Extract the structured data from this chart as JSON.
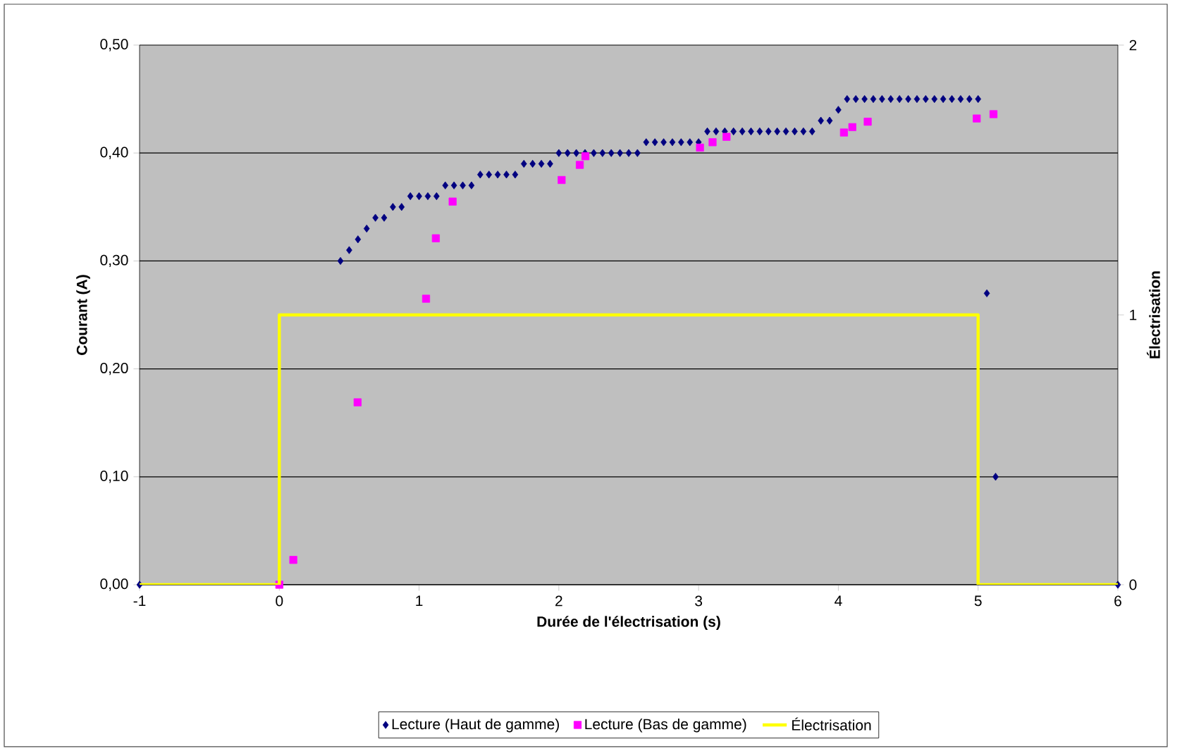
{
  "chart_data": {
    "type": "scatter",
    "xlabel": "Durée de l'électrisation  (s)",
    "ylabel": "Courant (A)",
    "y2label": "Électrisation",
    "xlim": [
      -1,
      6
    ],
    "xticks": [
      -1,
      0,
      1,
      2,
      3,
      4,
      5,
      6
    ],
    "ylim": [
      0,
      0.5
    ],
    "yticks": [
      {
        "value": 0,
        "label": "0,00"
      },
      {
        "value": 0.1,
        "label": "0,10"
      },
      {
        "value": 0.2,
        "label": "0,20"
      },
      {
        "value": 0.3,
        "label": "0,30"
      },
      {
        "value": 0.4,
        "label": "0,40"
      },
      {
        "value": 0.5,
        "label": "0,50"
      }
    ],
    "y2lim": [
      0,
      2
    ],
    "y2ticks": [
      0,
      1,
      2
    ],
    "grid": "y",
    "legend": "bottom",
    "series": [
      {
        "name": "Lecture (Haut de gamme)",
        "marker": "diamond",
        "color": "#000080",
        "x": [
          -1,
          0.4375,
          0.5,
          0.5625,
          0.625,
          0.6875,
          0.75,
          0.8125,
          0.875,
          0.9375,
          1,
          1.0625,
          1.125,
          1.1875,
          1.25,
          1.3125,
          1.375,
          1.4375,
          1.5,
          1.5625,
          1.625,
          1.6875,
          1.75,
          1.8125,
          1.875,
          1.9375,
          2,
          2.0625,
          2.125,
          2.1875,
          2.25,
          2.3125,
          2.375,
          2.4375,
          2.5,
          2.5625,
          2.625,
          2.6875,
          2.75,
          2.8125,
          2.875,
          2.9375,
          3,
          3.0625,
          3.125,
          3.1875,
          3.25,
          3.3125,
          3.375,
          3.4375,
          3.5,
          3.5625,
          3.625,
          3.6875,
          3.75,
          3.8125,
          3.875,
          3.9375,
          4,
          4.0625,
          4.125,
          4.1875,
          4.25,
          4.3125,
          4.375,
          4.4375,
          4.5,
          4.5625,
          4.625,
          4.6875,
          4.75,
          4.8125,
          4.875,
          4.9375,
          5,
          5.0625,
          5.125,
          6
        ],
        "values": [
          0,
          0.3,
          0.31,
          0.32,
          0.33,
          0.34,
          0.34,
          0.35,
          0.35,
          0.36,
          0.36,
          0.36,
          0.36,
          0.37,
          0.37,
          0.37,
          0.37,
          0.38,
          0.38,
          0.38,
          0.38,
          0.38,
          0.39,
          0.39,
          0.39,
          0.39,
          0.4,
          0.4,
          0.4,
          0.4,
          0.4,
          0.4,
          0.4,
          0.4,
          0.4,
          0.4,
          0.41,
          0.41,
          0.41,
          0.41,
          0.41,
          0.41,
          0.41,
          0.42,
          0.42,
          0.42,
          0.42,
          0.42,
          0.42,
          0.42,
          0.42,
          0.42,
          0.42,
          0.42,
          0.42,
          0.42,
          0.43,
          0.43,
          0.44,
          0.45,
          0.45,
          0.45,
          0.45,
          0.45,
          0.45,
          0.45,
          0.45,
          0.45,
          0.45,
          0.45,
          0.45,
          0.45,
          0.45,
          0.45,
          0.45,
          0.27,
          0.1,
          0
        ]
      },
      {
        "name": "Lecture (Bas de gamme)",
        "marker": "square",
        "color": "#ff00ff",
        "x": [
          0,
          0.1,
          0.56,
          1.05,
          1.12,
          1.24,
          2.02,
          2.15,
          2.19,
          3.01,
          3.1,
          3.2,
          4.04,
          4.1,
          4.21,
          4.99,
          5.11
        ],
        "values": [
          0,
          0.023,
          0.169,
          0.265,
          0.321,
          0.355,
          0.375,
          0.389,
          0.397,
          0.405,
          0.41,
          0.415,
          0.419,
          0.424,
          0.429,
          0.432,
          0.436
        ]
      },
      {
        "name": "Électrisation",
        "type": "line",
        "axis": "y2",
        "marker": "none",
        "color": "#ffff00",
        "x": [
          -1,
          0,
          0,
          5,
          5,
          6
        ],
        "values": [
          0,
          0,
          1,
          1,
          0,
          0
        ]
      }
    ]
  }
}
